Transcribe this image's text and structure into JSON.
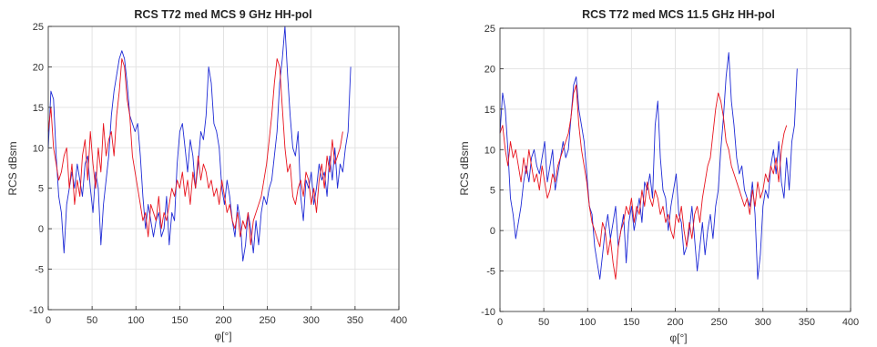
{
  "colors": {
    "series_blue": "#1f2bd6",
    "series_red": "#e8141e",
    "grid": "#e3e3e3",
    "axis": "#262626"
  },
  "chart_data": [
    {
      "type": "line",
      "title": "RCS T72 med MCS 9 GHz HH-pol",
      "xlabel": "φ[°]",
      "ylabel": "RCS dBsm",
      "xlim": [
        0,
        400
      ],
      "ylim": [
        -10,
        25
      ],
      "xticks": [
        "0",
        "50",
        "100",
        "150",
        "200",
        "250",
        "300",
        "350",
        "400"
      ],
      "yticks": [
        "-10",
        "-5",
        "0",
        "5",
        "10",
        "15",
        "20",
        "25"
      ],
      "grid": true,
      "x_step": 3,
      "series": [
        {
          "color": "#1f2bd6",
          "values": [
            10,
            17,
            16,
            9,
            4,
            2,
            -3,
            3,
            5,
            7,
            5,
            8,
            6,
            4,
            8,
            9,
            5,
            2,
            7,
            5,
            -2,
            3,
            6,
            9,
            14,
            17,
            19,
            21,
            22,
            21,
            18,
            14,
            13,
            12,
            13,
            9,
            4,
            0,
            3,
            1,
            -1,
            1,
            2,
            -1,
            0,
            4,
            -2,
            2,
            1,
            8,
            12,
            13,
            10,
            7,
            11,
            9,
            5,
            8,
            12,
            11,
            14,
            20,
            18,
            13,
            12,
            10,
            5,
            3,
            6,
            4,
            1,
            -1,
            3,
            1,
            -4,
            -2,
            2,
            0,
            -3,
            1,
            -2,
            2,
            4,
            3,
            5,
            6,
            9,
            12,
            18,
            21,
            25,
            19,
            14,
            10,
            9,
            12,
            4,
            1,
            6,
            5,
            7,
            3,
            5,
            8,
            6,
            7,
            4,
            9,
            6,
            10,
            5,
            8,
            7,
            10,
            12,
            20
          ]
        },
        {
          "color": "#e8141e",
          "values": [
            12,
            15,
            10,
            8,
            6,
            7,
            9,
            10,
            5,
            8,
            3,
            6,
            4,
            9,
            11,
            6,
            12,
            8,
            5,
            10,
            7,
            13,
            9,
            11,
            12,
            9,
            14,
            17,
            21,
            20,
            16,
            14,
            9,
            7,
            5,
            3,
            1,
            2,
            -1,
            3,
            2,
            1,
            4,
            0,
            2,
            1,
            3,
            5,
            4,
            6,
            5,
            7,
            4,
            6,
            3,
            7,
            5,
            9,
            6,
            8,
            7,
            5,
            6,
            4,
            5,
            3,
            6,
            4,
            2,
            3,
            1,
            0,
            2,
            -1,
            1,
            0,
            2,
            -2,
            1,
            2,
            3,
            4,
            6,
            8,
            11,
            14,
            18,
            21,
            20,
            15,
            10,
            7,
            8,
            4,
            3,
            5,
            6,
            4,
            7,
            6,
            3,
            5,
            2,
            6,
            8,
            5,
            9,
            7,
            11,
            8,
            9,
            10,
            12
          ]
        }
      ]
    },
    {
      "type": "line",
      "title": "RCS T72 med MCS 11.5 GHz HH-pol",
      "xlabel": "φ[°]",
      "ylabel": "RCS dBsm",
      "xlim": [
        0,
        400
      ],
      "ylim": [
        -10,
        25
      ],
      "xticks": [
        "0",
        "50",
        "100",
        "150",
        "200",
        "250",
        "300",
        "350",
        "400"
      ],
      "yticks": [
        "-10",
        "-5",
        "0",
        "5",
        "10",
        "15",
        "20",
        "25"
      ],
      "grid": true,
      "x_step": 3,
      "series": [
        {
          "color": "#1f2bd6",
          "values": [
            12,
            17,
            15,
            10,
            4,
            2,
            -1,
            1,
            3,
            6,
            8,
            6,
            9,
            10,
            8,
            7,
            9,
            11,
            6,
            8,
            10,
            5,
            7,
            9,
            11,
            9,
            10,
            14,
            18,
            19,
            15,
            13,
            11,
            7,
            3,
            2,
            -2,
            -4,
            -6,
            -3,
            0,
            2,
            -1,
            1,
            3,
            -2,
            0,
            2,
            -4,
            1,
            3,
            0,
            2,
            4,
            1,
            6,
            5,
            7,
            4,
            13,
            16,
            9,
            5,
            4,
            0,
            3,
            5,
            7,
            2,
            1,
            -3,
            -2,
            0,
            3,
            -1,
            -5,
            -2,
            1,
            -3,
            0,
            2,
            -1,
            3,
            5,
            10,
            14,
            19,
            22,
            16,
            13,
            9,
            7,
            8,
            5,
            4,
            3,
            6,
            2,
            -6,
            -3,
            3,
            5,
            4,
            8,
            10,
            7,
            11,
            6,
            4,
            9,
            5,
            11,
            13,
            20
          ]
        },
        {
          "color": "#e8141e",
          "values": [
            12,
            13,
            10,
            8,
            11,
            9,
            10,
            8,
            6,
            9,
            7,
            10,
            8,
            6,
            7,
            5,
            8,
            6,
            4,
            5,
            7,
            6,
            8,
            9,
            10,
            11,
            12,
            14,
            17,
            18,
            13,
            10,
            8,
            6,
            3,
            1,
            0,
            -1,
            -2,
            1,
            0,
            -3,
            -1,
            -4,
            -6,
            -2,
            0,
            1,
            3,
            2,
            4,
            1,
            3,
            2,
            5,
            3,
            6,
            4,
            3,
            5,
            4,
            2,
            3,
            1,
            2,
            0,
            -1,
            2,
            1,
            3,
            0,
            -2,
            1,
            -1,
            2,
            3,
            1,
            4,
            6,
            8,
            9,
            12,
            15,
            17,
            16,
            14,
            11,
            10,
            8,
            7,
            6,
            5,
            4,
            3,
            4,
            2,
            5,
            3,
            6,
            4,
            5,
            7,
            6,
            8,
            7,
            9,
            6,
            10,
            12,
            13
          ]
        }
      ]
    }
  ]
}
